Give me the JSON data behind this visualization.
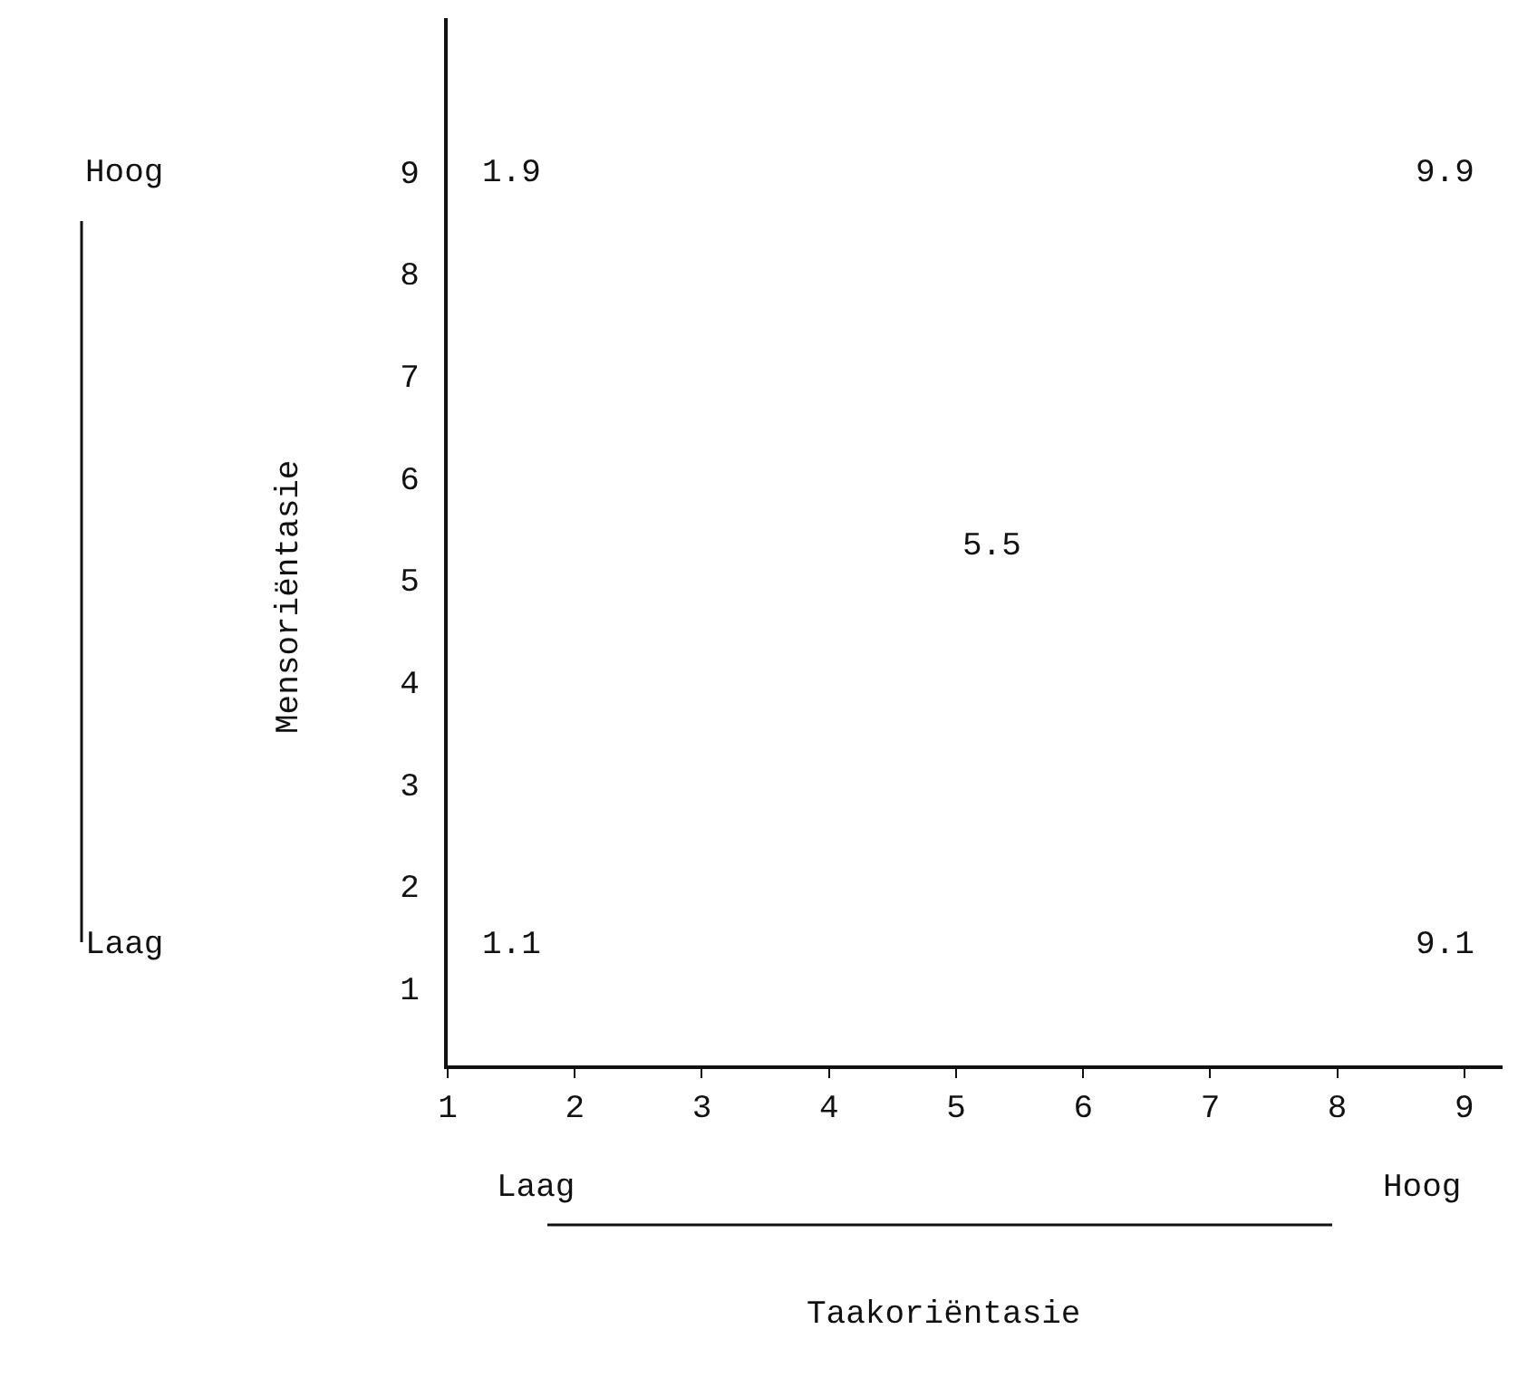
{
  "chart_data": {
    "type": "scatter",
    "ylabel": "Mensoriëntasie",
    "xlim": [
      1,
      9.3
    ],
    "xticks": [
      1,
      2,
      3,
      4,
      5,
      6,
      7,
      8,
      9
    ],
    "ylim": [
      0.24,
      10.5
    ],
    "yticks": [
      1,
      2,
      3,
      4,
      5,
      6,
      7,
      8,
      9
    ],
    "annotations": [
      "1.9",
      "1.1",
      "5.5",
      "9.9",
      "9.1",
      "Hoog",
      "Laag",
      "Laag",
      "Hoog",
      "Taakoriëntasie"
    ]
  }
}
